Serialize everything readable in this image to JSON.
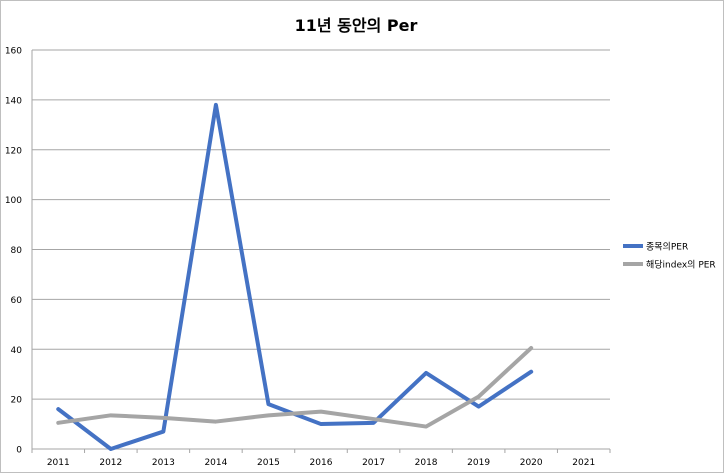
{
  "chart_data": {
    "type": "line",
    "title": "11년 동안의 Per",
    "categories": [
      "2011",
      "2012",
      "2013",
      "2014",
      "2015",
      "2016",
      "2017",
      "2018",
      "2019",
      "2020",
      "2021"
    ],
    "ylim": [
      0,
      160
    ],
    "yticks": [
      0,
      20,
      40,
      60,
      80,
      100,
      120,
      140,
      160
    ],
    "grid": true,
    "legend_position": "right",
    "series": [
      {
        "name": "종목의PER",
        "color": "#4472C4",
        "values": [
          16,
          0,
          7,
          138,
          18,
          10,
          10.5,
          30.5,
          17,
          31,
          null
        ]
      },
      {
        "name": "해당index의 PER",
        "color": "#A5A5A5",
        "values": [
          10.5,
          13.5,
          12.5,
          11,
          13.5,
          15,
          12,
          9,
          21,
          40.5,
          null
        ]
      }
    ]
  }
}
